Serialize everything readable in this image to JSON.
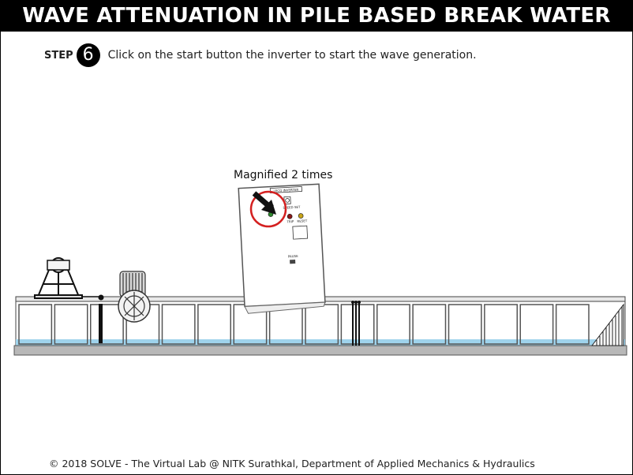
{
  "header": {
    "title": "WAVE ATTENUATION IN PILE BASED BREAK WATER"
  },
  "step": {
    "label": "STEP",
    "number": "6",
    "instruction": "Click on the start button the inverter to start the wave generation."
  },
  "inverter": {
    "magnified_label": "Magnified 2 times",
    "panel_title": "LECO INVERTER",
    "labels": {
      "run": "RUN",
      "stop": "STOP",
      "speed": "SPEED SET",
      "trip": "TRIP",
      "reset": "RESET",
      "pause": "PAUSE"
    }
  },
  "footer": {
    "text": "© 2018 SOLVE - The Virtual Lab @ NITK Surathkal, Department of Applied Mechanics & Hydraulics"
  },
  "colors": {
    "water": "#9fd3ec",
    "highlight_ring": "#d42020",
    "tank_base": "#b8b8b8"
  }
}
